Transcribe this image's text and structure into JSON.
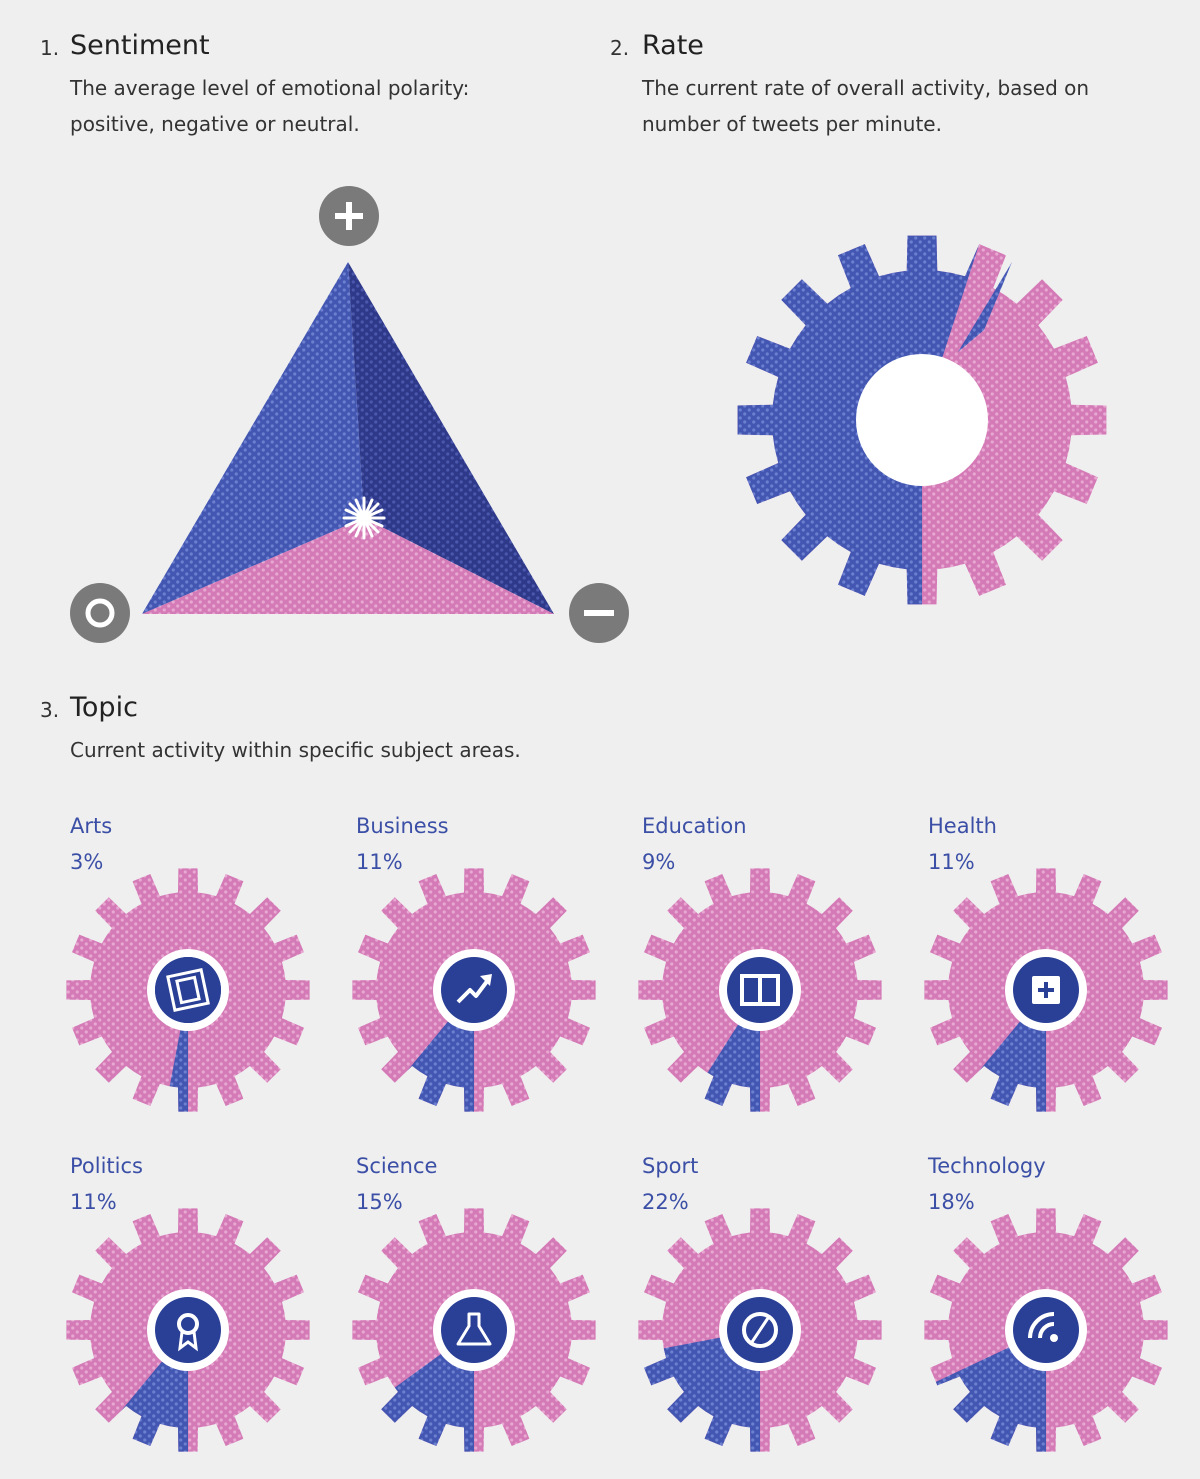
{
  "colors": {
    "blue": "#4358b4",
    "dark_blue": "#2f3a8c",
    "pink": "#d77cb8",
    "gray": "#7a7a7a",
    "icon_blue": "#2a3f96"
  },
  "sections": {
    "sentiment": {
      "num": "1.",
      "title": "Sentiment",
      "desc_line1": "The average level of emotional polarity:",
      "desc_line2": "positive, negative or neutral."
    },
    "rate": {
      "num": "2.",
      "title": "Rate",
      "desc_line1": "The current rate of overall activity, based on",
      "desc_line2": "number of tweets per minute."
    },
    "topic": {
      "num": "3.",
      "title": "Topic",
      "desc_line1": "Current activity within specific subject areas."
    }
  },
  "chart_data": [
    {
      "type": "ternary",
      "name": "sentiment",
      "vertices": [
        "positive",
        "negative",
        "neutral"
      ],
      "vertex_icons": [
        "plus-icon",
        "minus-icon",
        "circle-icon"
      ]
    },
    {
      "type": "pie",
      "name": "rate",
      "shape": "gear",
      "blue_fraction": 0.55
    },
    {
      "type": "pie",
      "name": "topic",
      "shape": "gear",
      "topics": [
        {
          "label": "Arts",
          "pct_label": "3%",
          "value": 3,
          "icon": "film-icon"
        },
        {
          "label": "Business",
          "pct_label": "11%",
          "value": 11,
          "icon": "trend-arrow-icon"
        },
        {
          "label": "Education",
          "pct_label": "9%",
          "value": 9,
          "icon": "book-icon"
        },
        {
          "label": "Health",
          "pct_label": "11%",
          "value": 11,
          "icon": "medical-plus-icon"
        },
        {
          "label": "Politics",
          "pct_label": "11%",
          "value": 11,
          "icon": "rosette-icon"
        },
        {
          "label": "Science",
          "pct_label": "15%",
          "value": 15,
          "icon": "flask-icon"
        },
        {
          "label": "Sport",
          "pct_label": "22%",
          "value": 22,
          "icon": "ball-icon"
        },
        {
          "label": "Technology",
          "pct_label": "18%",
          "value": 18,
          "icon": "wifi-icon"
        }
      ]
    }
  ]
}
